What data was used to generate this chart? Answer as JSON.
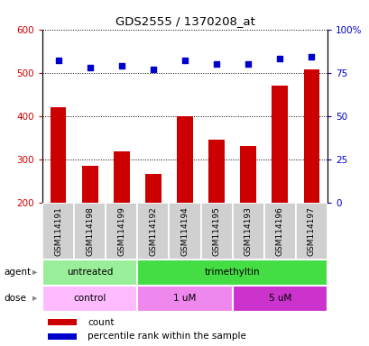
{
  "title": "GDS2555 / 1370208_at",
  "samples": [
    "GSM114191",
    "GSM114198",
    "GSM114199",
    "GSM114192",
    "GSM114194",
    "GSM114195",
    "GSM114193",
    "GSM114196",
    "GSM114197"
  ],
  "bar_values": [
    420,
    284,
    318,
    265,
    400,
    345,
    330,
    470,
    508
  ],
  "dot_values": [
    82,
    78,
    79,
    77,
    82,
    80,
    80,
    83,
    84
  ],
  "ylim_left": [
    200,
    600
  ],
  "ylim_right": [
    0,
    100
  ],
  "yticks_left": [
    200,
    300,
    400,
    500,
    600
  ],
  "yticks_right": [
    0,
    25,
    50,
    75,
    100
  ],
  "bar_color": "#cc0000",
  "dot_color": "#0000cc",
  "bar_bottom": 200,
  "agent_groups": [
    {
      "label": "untreated",
      "start": 0,
      "end": 3,
      "color": "#99ee99"
    },
    {
      "label": "trimethyltin",
      "start": 3,
      "end": 9,
      "color": "#44dd44"
    }
  ],
  "dose_groups": [
    {
      "label": "control",
      "start": 0,
      "end": 3,
      "color": "#ffbbff"
    },
    {
      "label": "1 uM",
      "start": 3,
      "end": 6,
      "color": "#ee88ee"
    },
    {
      "label": "5 uM",
      "start": 6,
      "end": 9,
      "color": "#cc33cc"
    }
  ],
  "legend_count_color": "#cc0000",
  "legend_dot_color": "#0000cc",
  "sample_box_color": "#d0d0d0",
  "left_tick_color": "#cc0000",
  "right_tick_color": "#0000cc"
}
